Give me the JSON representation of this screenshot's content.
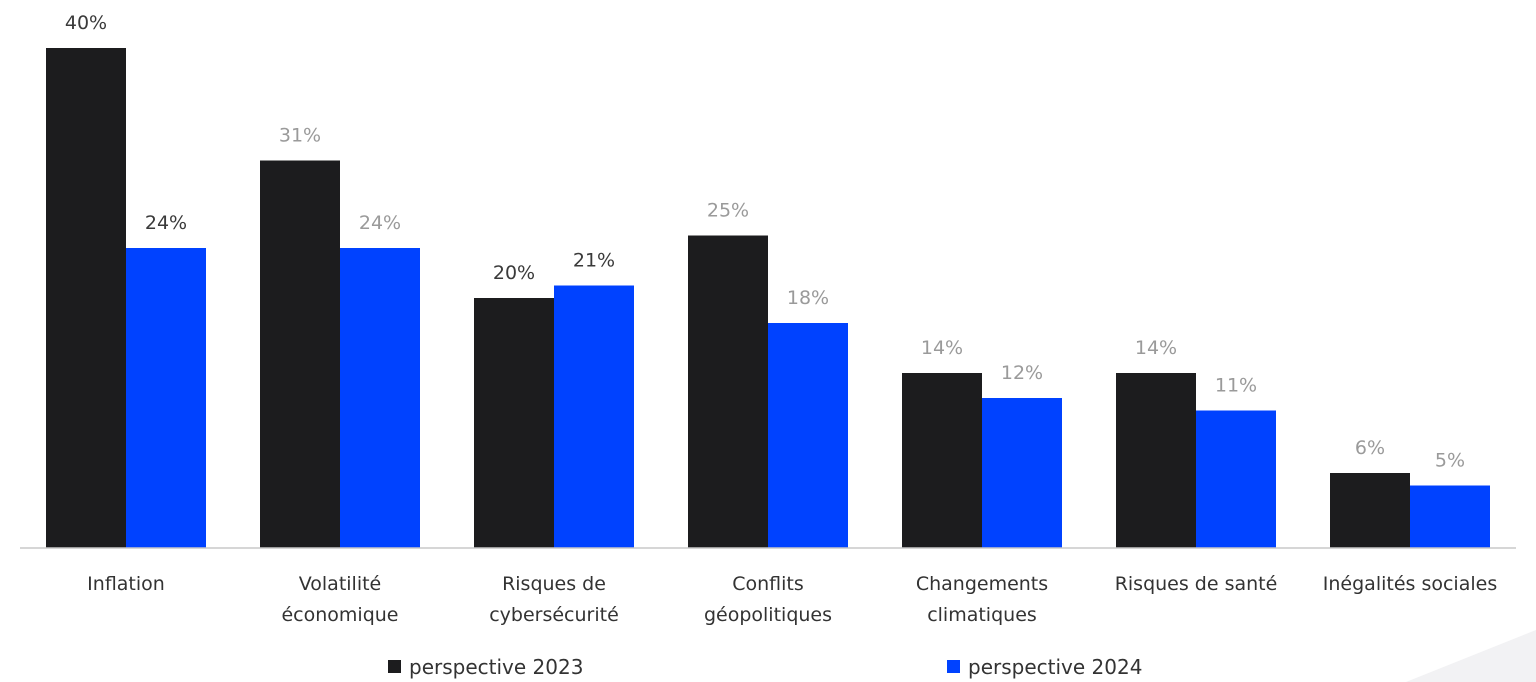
{
  "chart_data": {
    "type": "bar",
    "categories": [
      [
        "Inflation"
      ],
      [
        "Volatilité",
        "économique"
      ],
      [
        "Risques de",
        "cybersécurité"
      ],
      [
        "Conflits",
        "géopolitiques"
      ],
      [
        "Changements",
        "climatiques"
      ],
      [
        "Risques de santé"
      ],
      [
        "Inégalités sociales"
      ]
    ],
    "series": [
      {
        "name": "perspective 2023",
        "color": "#1c1c1e",
        "values": [
          40,
          31,
          20,
          25,
          14,
          14,
          6
        ],
        "labels": [
          "40%",
          "31%",
          "20%",
          "25%",
          "14%",
          "14%",
          "6%"
        ],
        "label_colors": [
          "#3a3a3a",
          "#9a9a9a",
          "#3a3a3a",
          "#9a9a9a",
          "#9a9a9a",
          "#9a9a9a",
          "#9a9a9a"
        ]
      },
      {
        "name": "perspective 2024",
        "color": "#0042ff",
        "values": [
          24,
          24,
          21,
          18,
          12,
          11,
          5
        ],
        "labels": [
          "24%",
          "24%",
          "21%",
          "18%",
          "12%",
          "11%",
          "5%"
        ],
        "label_colors": [
          "#3a3a3a",
          "#9a9a9a",
          "#3a3a3a",
          "#9a9a9a",
          "#9a9a9a",
          "#9a9a9a",
          "#9a9a9a"
        ]
      }
    ],
    "ylim": [
      0,
      40
    ],
    "unit": "%",
    "grid": false,
    "legend_position": "bottom",
    "axis_color": "#c8c8c8"
  }
}
